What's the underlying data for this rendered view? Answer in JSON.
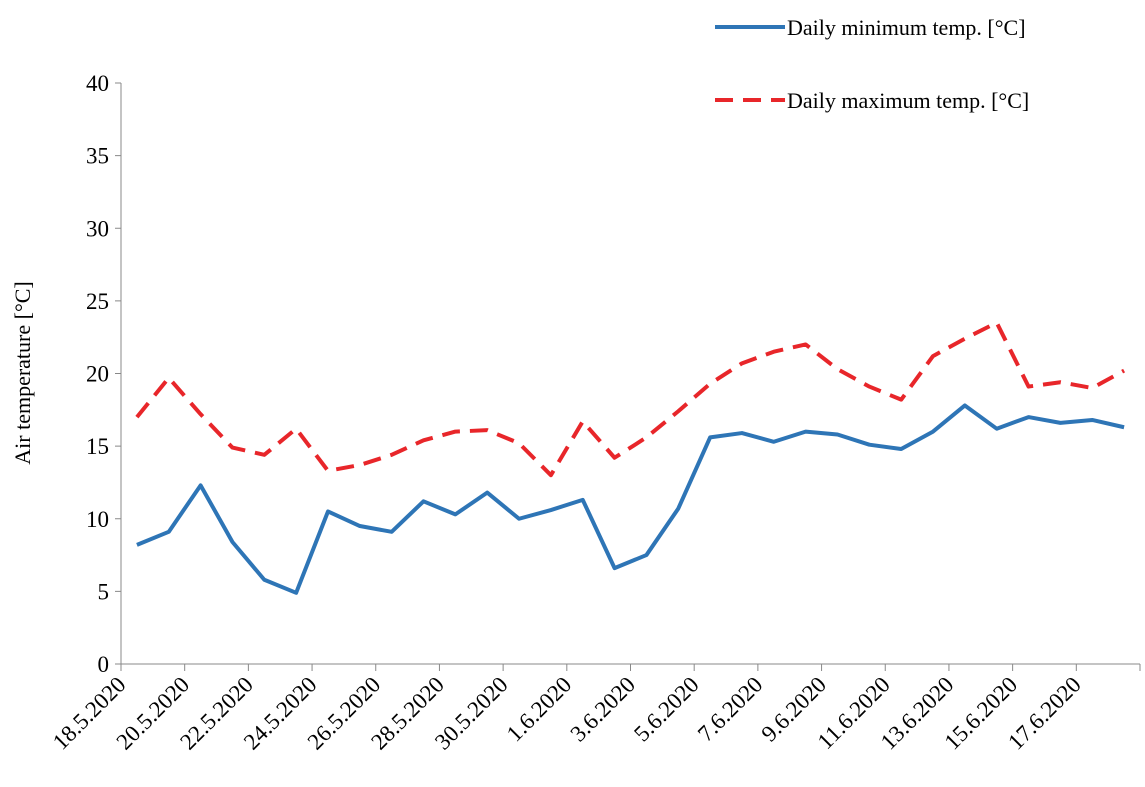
{
  "chart_data": {
    "type": "line",
    "y_label": "Air temperature  [°C]",
    "categories": [
      "18.5.2020",
      null,
      "20.5.2020",
      null,
      "22.5.2020",
      null,
      "24.5.2020",
      null,
      "26.5.2020",
      null,
      "28.5.2020",
      null,
      "30.5.2020",
      null,
      "1.6.2020",
      null,
      "3.6.2020",
      null,
      "5.6.2020",
      null,
      "7.6.2020",
      null,
      "9.6.2020",
      null,
      "11.6.2020",
      null,
      "13.6.2020",
      null,
      "15.6.2020",
      null,
      "17.6.2020",
      null
    ],
    "series": [
      {
        "name": "Daily minimum temp. [°C]",
        "color": "#2e75b6",
        "dash": "solid",
        "values": [
          8.2,
          9.1,
          12.3,
          8.4,
          5.8,
          4.9,
          10.5,
          9.5,
          9.1,
          11.2,
          10.3,
          11.8,
          10.0,
          10.6,
          11.3,
          6.6,
          7.5,
          10.7,
          15.6,
          15.9,
          15.3,
          16.0,
          15.8,
          15.1,
          14.8,
          16.0,
          17.8,
          16.2,
          17.0,
          16.6,
          16.8,
          16.3
        ]
      },
      {
        "name": "Daily maximum temp. [°C]",
        "color": "#e8262a",
        "dash": "dashed",
        "values": [
          17.0,
          19.7,
          17.2,
          14.9,
          14.4,
          16.2,
          13.3,
          13.7,
          14.4,
          15.4,
          16.0,
          16.1,
          15.2,
          13.0,
          16.7,
          14.2,
          15.6,
          17.4,
          19.3,
          20.7,
          21.5,
          22.0,
          20.3,
          19.1,
          18.2,
          21.2,
          22.4,
          23.5,
          19.1,
          19.4,
          19.0,
          20.2
        ]
      }
    ],
    "ylim": [
      0,
      40
    ],
    "yticks": [
      0,
      5,
      10,
      15,
      20,
      25,
      30,
      35,
      40
    ],
    "grid": false,
    "legend": "top-right"
  }
}
